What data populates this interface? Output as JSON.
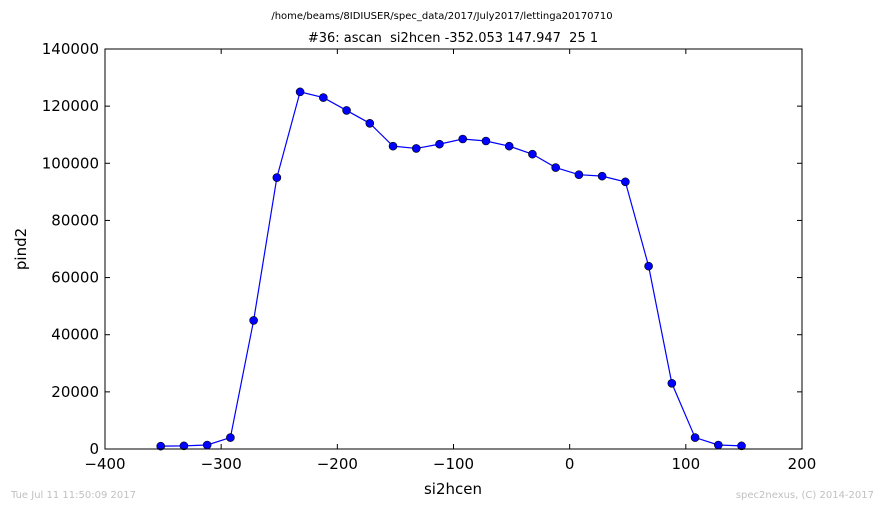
{
  "header": {
    "file_path": "/home/beams/8IDIUSER/spec_data/2017/July2017/lettinga20170710"
  },
  "footer": {
    "timestamp": "Tue Jul 11 11:50:09 2017",
    "credit": "spec2nexus, (C) 2014-2017"
  },
  "chart_data": {
    "type": "line",
    "title": "#36: ascan  si2hcen -352.053 147.947  25 1",
    "xlabel": "si2hcen",
    "ylabel": "pind2",
    "xlim": [
      -400,
      200
    ],
    "ylim": [
      0,
      140000
    ],
    "x_ticks": [
      -400,
      -300,
      -200,
      -100,
      0,
      100,
      200
    ],
    "x_tick_labels": [
      "−400",
      "−300",
      "−200",
      "−100",
      "0",
      "100",
      "200"
    ],
    "y_ticks": [
      0,
      20000,
      40000,
      60000,
      80000,
      100000,
      120000,
      140000
    ],
    "y_tick_labels": [
      "0",
      "20000",
      "40000",
      "60000",
      "80000",
      "100000",
      "120000",
      "140000"
    ],
    "grid": false,
    "line_color": "#0000ff",
    "marker": "circle",
    "series": [
      {
        "x": [
          -352.053,
          -332.053,
          -312.053,
          -292.053,
          -272.053,
          -252.053,
          -232.053,
          -212.053,
          -192.053,
          -172.053,
          -152.053,
          -132.053,
          -112.053,
          -92.053,
          -72.053,
          -52.053,
          -32.053,
          -12.053,
          7.947,
          27.947,
          47.947,
          67.947,
          87.947,
          107.947,
          127.947,
          147.947
        ],
        "y": [
          1000,
          1100,
          1400,
          4000,
          45000,
          95000,
          125000,
          123000,
          118500,
          114000,
          106000,
          105200,
          106700,
          108500,
          107800,
          106000,
          103200,
          98500,
          96000,
          95500,
          93500,
          64000,
          23000,
          4000,
          1400,
          1100
        ]
      }
    ]
  }
}
